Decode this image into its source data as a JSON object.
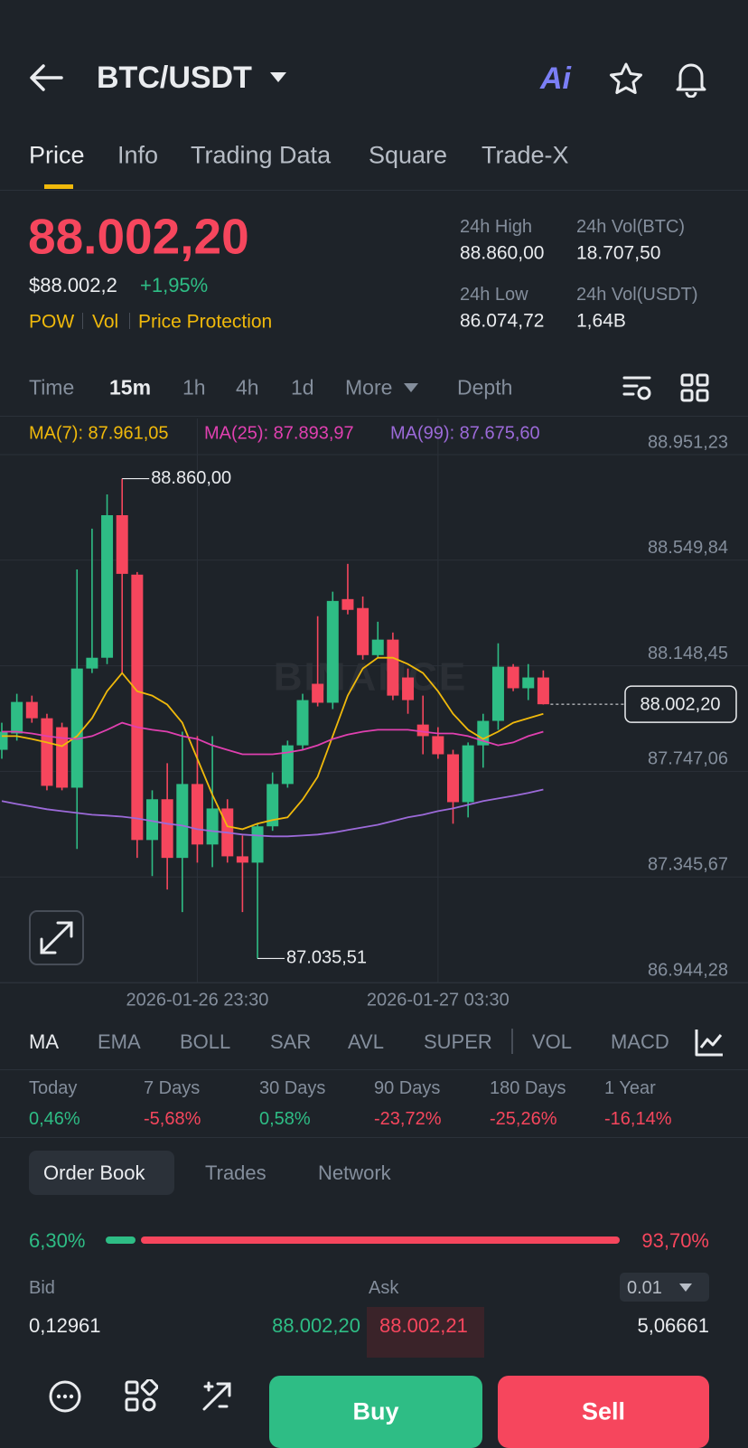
{
  "header": {
    "title": "BTC/USDT",
    "ai_button": "Ai"
  },
  "tabs": [
    "Price",
    "Info",
    "Trading Data",
    "Square",
    "Trade-X"
  ],
  "ticker": {
    "last_price": "88.002,20",
    "usd_price": "$88.002,2",
    "change": "+1,95%",
    "tags": [
      "POW",
      "Vol",
      "Price Protection"
    ],
    "stats": [
      {
        "label": "24h High",
        "value": "88.860,00"
      },
      {
        "label": "24h Vol(BTC)",
        "value": "18.707,50"
      },
      {
        "label": "24h Low",
        "value": "86.074,72"
      },
      {
        "label": "24h Vol(USDT)",
        "value": "1,64B"
      }
    ]
  },
  "intervals": [
    "Time",
    "15m",
    "1h",
    "4h",
    "1d",
    "More"
  ],
  "depth": "Depth",
  "chart_data": {
    "type": "candlestick",
    "watermark": "BINANCE",
    "up_color": "#2ebd85",
    "down_color": "#f6465d",
    "categories": [
      null,
      null,
      null,
      null,
      null,
      null,
      null,
      null,
      null,
      null,
      null,
      null,
      null,
      "2026-01-26 23:30",
      null,
      null,
      null,
      null,
      null,
      null,
      null,
      null,
      null,
      null,
      null,
      null,
      null,
      null,
      null,
      "2026-01-27 03:30",
      null,
      null,
      null,
      null,
      null,
      null,
      null
    ],
    "open": [
      87829,
      87891,
      88011,
      87949,
      87915,
      87685,
      88138,
      88179,
      88721,
      88495,
      87486,
      87641,
      87418,
      87699,
      87469,
      87606,
      87424,
      87400,
      87538,
      87699,
      87846,
      88080,
      88008,
      88402,
      88368,
      88189,
      88248,
      88104,
      87925,
      87881,
      87812,
      87630,
      87846,
      87939,
      88145,
      88063,
      88104
    ],
    "high": [
      87932,
      88042,
      88035,
      87966,
      87932,
      88515,
      88670,
      88800,
      88860,
      88505,
      87675,
      87778,
      87898,
      87881,
      87881,
      87641,
      87503,
      87548,
      87743,
      87864,
      88042,
      88337,
      88430,
      88536,
      88412,
      88316,
      88275,
      88138,
      88035,
      87915,
      87829,
      87857,
      87966,
      88234,
      88155,
      88155,
      88131
    ],
    "low": [
      87795,
      87864,
      87932,
      87675,
      87675,
      87452,
      88121,
      88155,
      88121,
      87418,
      87349,
      87298,
      87212,
      87400,
      87383,
      87400,
      87212,
      87035.51,
      87521,
      87685,
      87829,
      87994,
      87984,
      88344,
      88172,
      88179,
      88018,
      87966,
      87812,
      87795,
      87548,
      87572,
      87761,
      87905,
      88052,
      88018,
      88001
    ],
    "close": [
      87898,
      88011,
      87949,
      87692,
      87685,
      88138,
      88179,
      88721,
      88498,
      87486,
      87641,
      87418,
      87699,
      87469,
      87606,
      87424,
      87400,
      87538,
      87699,
      87846,
      88018,
      88008,
      88395,
      88361,
      88189,
      88248,
      88035,
      88018,
      87881,
      87812,
      87630,
      87846,
      87939,
      88145,
      88063,
      88104,
      88002.2
    ],
    "series": [
      {
        "label": "MA(7): 87.961,05",
        "color": "#f0b90b",
        "values": [
          87881,
          87881,
          87870,
          87857,
          87843,
          87881,
          87949,
          88052,
          88121,
          88052,
          88035,
          88001,
          87932,
          87795,
          87658,
          87538,
          87527,
          87548,
          87562,
          87572,
          87640,
          87726,
          87881,
          88035,
          88138,
          88179,
          88179,
          88155,
          88121,
          88052,
          87966,
          87905,
          87870,
          87898,
          87932,
          87949,
          87966
        ]
      },
      {
        "label": "MA(25): 87.893,97",
        "color": "#e040b0",
        "values": [
          87898,
          87898,
          87891,
          87881,
          87874,
          87870,
          87881,
          87905,
          87932,
          87915,
          87905,
          87898,
          87881,
          87870,
          87846,
          87829,
          87812,
          87812,
          87812,
          87819,
          87829,
          87846,
          87870,
          87887,
          87898,
          87905,
          87905,
          87905,
          87898,
          87891,
          87891,
          87881,
          87863,
          87846,
          87857,
          87881,
          87898
        ]
      },
      {
        "label": "MA(99): 87.675,60",
        "color": "#9c6ad9",
        "values": [
          87634,
          87623,
          87613,
          87603,
          87596,
          87589,
          87582,
          87579,
          87575,
          87568,
          87558,
          87548,
          87541,
          87527,
          87520,
          87514,
          87507,
          87503,
          87500,
          87500,
          87503,
          87507,
          87514,
          87524,
          87534,
          87544,
          87558,
          87572,
          87582,
          87596,
          87606,
          87620,
          87634,
          87644,
          87654,
          87665,
          87678
        ]
      }
    ],
    "annotations": {
      "high_label": "88.860,00",
      "low_label": "87.035,51",
      "last_label": "88.002,20"
    },
    "ylim": [
      86944.28,
      88951.23
    ],
    "yticks": [
      {
        "value": 86944.28,
        "label": "86.944,28"
      },
      {
        "value": 87345.67,
        "label": "87.345,67"
      },
      {
        "value": 87747.06,
        "label": "87.747,06"
      },
      {
        "value": 88148.45,
        "label": "88.148,45"
      },
      {
        "value": 88549.84,
        "label": "88.549,84"
      },
      {
        "value": 88951.23,
        "label": "88.951,23"
      }
    ],
    "grid": true
  },
  "indicators": [
    "MA",
    "EMA",
    "BOLL",
    "SAR",
    "AVL",
    "SUPER"
  ],
  "sub_indicators": [
    "VOL",
    "MACD"
  ],
  "performance": [
    {
      "period": "Today",
      "change": "0,46%"
    },
    {
      "period": "7 Days",
      "change": "-5,68%"
    },
    {
      "period": "30 Days",
      "change": "0,58%"
    },
    {
      "period": "90 Days",
      "change": "-23,72%"
    },
    {
      "period": "180 Days",
      "change": "-25,26%"
    },
    {
      "period": "1 Year",
      "change": "-16,14%"
    }
  ],
  "order_book": {
    "tabs": [
      "Order Book",
      "Trades",
      "Network"
    ],
    "ratio": {
      "values": [
        6.3,
        93.7
      ],
      "value_labels": [
        "6,30%",
        "93,70%"
      ]
    },
    "bid_header": "Bid",
    "ask_header": "Ask",
    "precision": "0.01",
    "rows": [
      [
        "0,12961",
        "88.002,20",
        "88.002,21",
        "5,06661"
      ]
    ]
  },
  "footer": {
    "buy": "Buy",
    "sell": "Sell"
  }
}
